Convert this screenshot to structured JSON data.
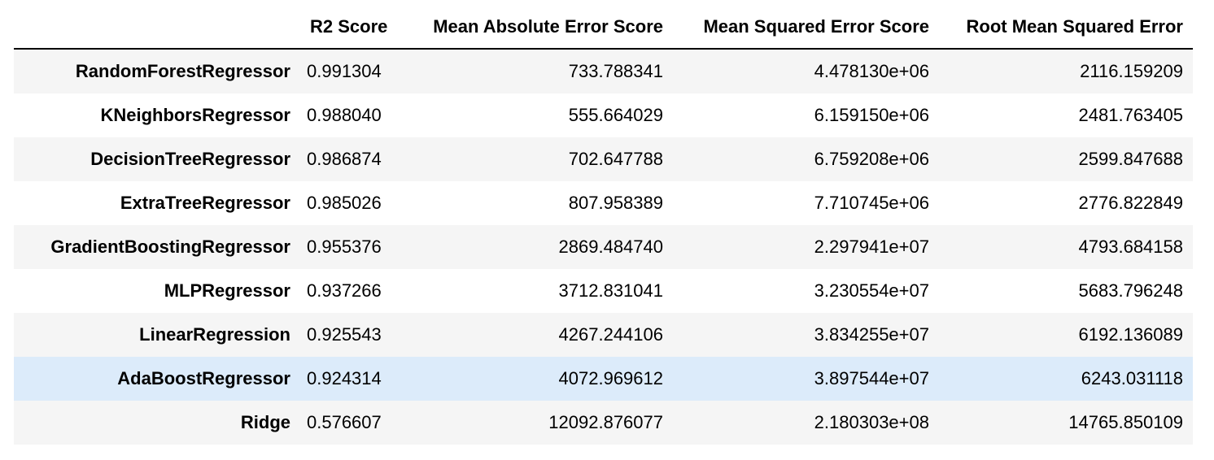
{
  "table": {
    "columns": [
      "R2 Score",
      "Mean Absolute Error Score",
      "Mean Squared Error Score",
      "Root Mean Squared Error"
    ],
    "rows": [
      {
        "model": "RandomForestRegressor",
        "values": [
          "0.991304",
          "733.788341",
          "4.478130e+06",
          "2116.159209"
        ]
      },
      {
        "model": "KNeighborsRegressor",
        "values": [
          "0.988040",
          "555.664029",
          "6.159150e+06",
          "2481.763405"
        ]
      },
      {
        "model": "DecisionTreeRegressor",
        "values": [
          "0.986874",
          "702.647788",
          "6.759208e+06",
          "2599.847688"
        ]
      },
      {
        "model": "ExtraTreeRegressor",
        "values": [
          "0.985026",
          "807.958389",
          "7.710745e+06",
          "2776.822849"
        ]
      },
      {
        "model": "GradientBoostingRegressor",
        "values": [
          "0.955376",
          "2869.484740",
          "2.297941e+07",
          "4793.684158"
        ]
      },
      {
        "model": "MLPRegressor",
        "values": [
          "0.937266",
          "3712.831041",
          "3.230554e+07",
          "5683.796248"
        ]
      },
      {
        "model": "LinearRegression",
        "values": [
          "0.925543",
          "4267.244106",
          "3.834255e+07",
          "6192.136089"
        ]
      },
      {
        "model": "AdaBoostRegressor",
        "values": [
          "0.924314",
          "4072.969612",
          "3.897544e+07",
          "6243.031118"
        ]
      },
      {
        "model": "Ridge",
        "values": [
          "0.576607",
          "12092.876077",
          "2.180303e+08",
          "14765.850109"
        ]
      }
    ],
    "highlighted_row": 7
  },
  "colors": {
    "stripe": "#f5f5f5",
    "highlight": "#dcebfa",
    "header_rule": "#000000"
  }
}
